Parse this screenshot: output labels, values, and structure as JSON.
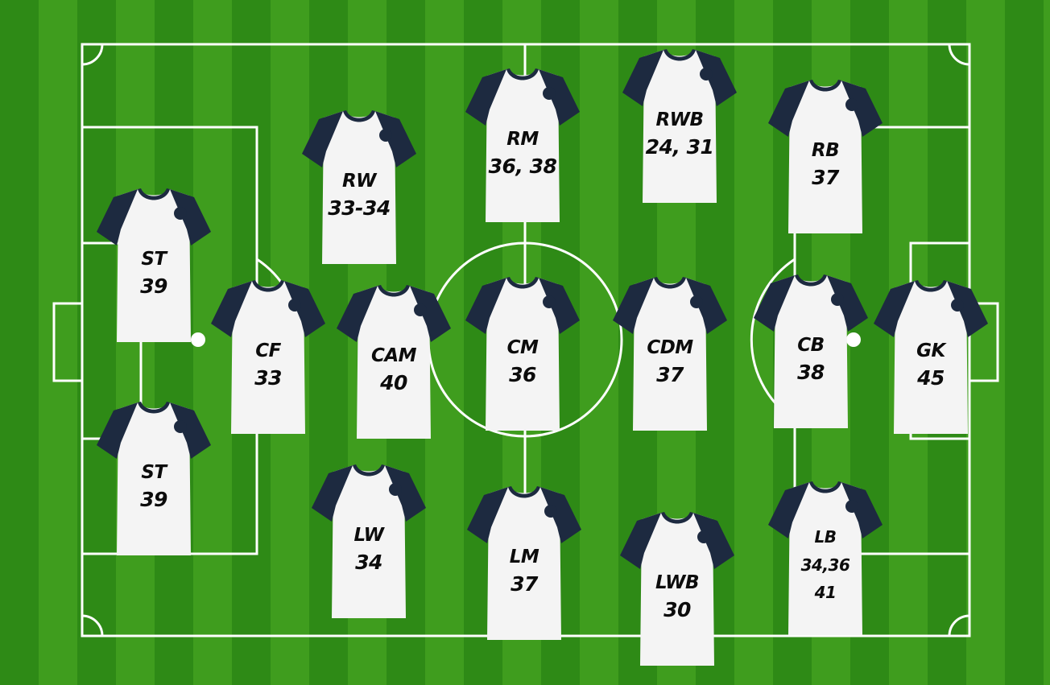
{
  "colors": {
    "grass_dark": "#2e8a16",
    "grass_light": "#3f9d1e",
    "lines": "#ffffff",
    "shirt_body": "#f4f4f4",
    "shirt_sleeves": "#1d2a40"
  },
  "players": [
    {
      "position": "RW",
      "numbers": "33-34"
    },
    {
      "position": "RM",
      "numbers": "36, 38"
    },
    {
      "position": "RWB",
      "numbers": "24, 31"
    },
    {
      "position": "RB",
      "numbers": "37"
    },
    {
      "position": "ST",
      "numbers": "39"
    },
    {
      "position": "CF",
      "numbers": "33"
    },
    {
      "position": "CAM",
      "numbers": "40"
    },
    {
      "position": "CM",
      "numbers": "36"
    },
    {
      "position": "CDM",
      "numbers": "37"
    },
    {
      "position": "CB",
      "numbers": "38"
    },
    {
      "position": "GK",
      "numbers": "45"
    },
    {
      "position": "ST",
      "numbers": "39"
    },
    {
      "position": "LW",
      "numbers": "34"
    },
    {
      "position": "LM",
      "numbers": "37"
    },
    {
      "position": "LWB",
      "numbers": "30"
    },
    {
      "position": "LB",
      "numbers": "34,36\n41"
    }
  ]
}
